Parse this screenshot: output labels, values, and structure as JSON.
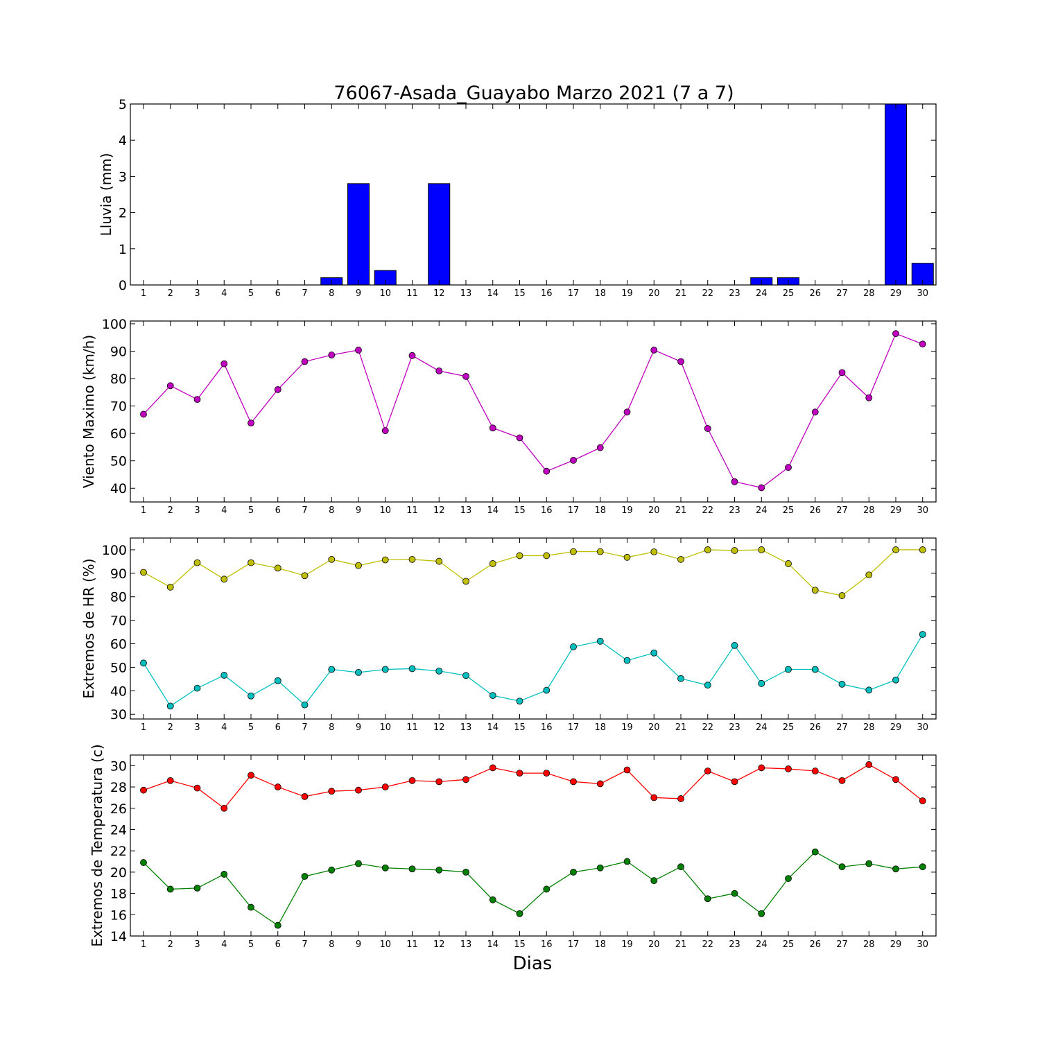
{
  "figure": {
    "title": "76067-Asada_Guayabo Marzo 2021  (7 a 7)",
    "xlabel": "Dias"
  },
  "chart_data": [
    {
      "type": "bar",
      "ylabel": "Lluvia (mm)",
      "ylim": [
        0,
        5
      ],
      "yticks": [
        0,
        1,
        2,
        3,
        4,
        5
      ],
      "x": [
        1,
        2,
        3,
        4,
        5,
        6,
        7,
        8,
        9,
        10,
        11,
        12,
        13,
        14,
        15,
        16,
        17,
        18,
        19,
        20,
        21,
        22,
        23,
        24,
        25,
        26,
        27,
        28,
        29,
        30
      ],
      "series": [
        {
          "color": "#0000ff",
          "values": [
            0,
            0,
            0,
            0,
            0,
            0,
            0,
            0.2,
            2.8,
            0.4,
            0,
            2.8,
            0,
            0,
            0,
            0,
            0,
            0,
            0,
            0,
            0,
            0,
            0,
            0.2,
            0.2,
            0,
            0,
            0,
            5.0,
            0.6
          ]
        }
      ]
    },
    {
      "type": "line",
      "ylabel": "Viento Maximo (km/h)",
      "ylim": [
        35,
        101
      ],
      "yticks": [
        40,
        50,
        60,
        70,
        80,
        90,
        100
      ],
      "x": [
        1,
        2,
        3,
        4,
        5,
        6,
        7,
        8,
        9,
        10,
        11,
        12,
        13,
        14,
        15,
        16,
        17,
        18,
        19,
        20,
        21,
        22,
        23,
        24,
        25,
        26,
        27,
        28,
        29,
        30
      ],
      "series": [
        {
          "color": "#bf00bf",
          "values": [
            67,
            77.4,
            72.4,
            85.4,
            63.8,
            76,
            86.2,
            88.6,
            90.4,
            61,
            88.4,
            82.8,
            80.8,
            62,
            58.4,
            46.2,
            50.2,
            54.8,
            67.8,
            90.4,
            86.2,
            61.8,
            42.4,
            40.2,
            47.6,
            67.8,
            82.2,
            73,
            96.4,
            92.6
          ]
        }
      ]
    },
    {
      "type": "line",
      "ylabel": "Extremos de HR (%)",
      "ylim": [
        28,
        105
      ],
      "yticks": [
        30,
        40,
        50,
        60,
        70,
        80,
        90,
        100
      ],
      "x": [
        1,
        2,
        3,
        4,
        5,
        6,
        7,
        8,
        9,
        10,
        11,
        12,
        13,
        14,
        15,
        16,
        17,
        18,
        19,
        20,
        21,
        22,
        23,
        24,
        25,
        26,
        27,
        28,
        29,
        30
      ],
      "series": [
        {
          "color": "#bfbf00",
          "values": [
            90.4,
            84.1,
            94.5,
            87.5,
            94.5,
            92.2,
            89,
            95.9,
            93.3,
            95.7,
            95.9,
            95.1,
            86.6,
            94.1,
            97.5,
            97.5,
            99.2,
            99.2,
            96.8,
            99.1,
            95.9,
            100,
            99.7,
            100,
            94.1,
            82.8,
            80.5,
            89.3,
            100,
            100
          ]
        },
        {
          "color": "#00bfbf",
          "values": [
            51.8,
            33.5,
            41.1,
            46.6,
            37.8,
            44.3,
            34,
            49.1,
            47.8,
            49.1,
            49.4,
            48.4,
            46.5,
            38,
            35.6,
            40.2,
            58.7,
            61.1,
            52.9,
            56.1,
            45.2,
            42.4,
            59.3,
            43.1,
            49.1,
            49.1,
            42.8,
            40.3,
            44.6,
            64
          ]
        }
      ]
    },
    {
      "type": "line",
      "ylabel": "Extremos de Temperatura (c)",
      "ylim": [
        14,
        31
      ],
      "yticks": [
        14,
        16,
        18,
        20,
        22,
        24,
        26,
        28,
        30
      ],
      "x": [
        1,
        2,
        3,
        4,
        5,
        6,
        7,
        8,
        9,
        10,
        11,
        12,
        13,
        14,
        15,
        16,
        17,
        18,
        19,
        20,
        21,
        22,
        23,
        24,
        25,
        26,
        27,
        28,
        29,
        30
      ],
      "series": [
        {
          "color": "#ff0000",
          "values": [
            27.7,
            28.6,
            27.9,
            26,
            29.1,
            28,
            27.1,
            27.6,
            27.7,
            28,
            28.6,
            28.5,
            28.7,
            29.8,
            29.3,
            29.3,
            28.5,
            28.3,
            29.6,
            27,
            26.9,
            29.5,
            28.5,
            29.8,
            29.7,
            29.5,
            28.6,
            30.1,
            28.7,
            26.7
          ]
        },
        {
          "color": "#008000",
          "values": [
            20.9,
            18.4,
            18.5,
            19.8,
            16.7,
            15,
            19.6,
            20.2,
            20.8,
            20.4,
            20.3,
            20.2,
            20,
            17.4,
            16.1,
            18.4,
            20,
            20.4,
            21,
            19.2,
            20.5,
            17.5,
            18,
            16.1,
            19.4,
            21.9,
            20.5,
            20.8,
            20.3,
            20.5
          ]
        }
      ]
    }
  ]
}
